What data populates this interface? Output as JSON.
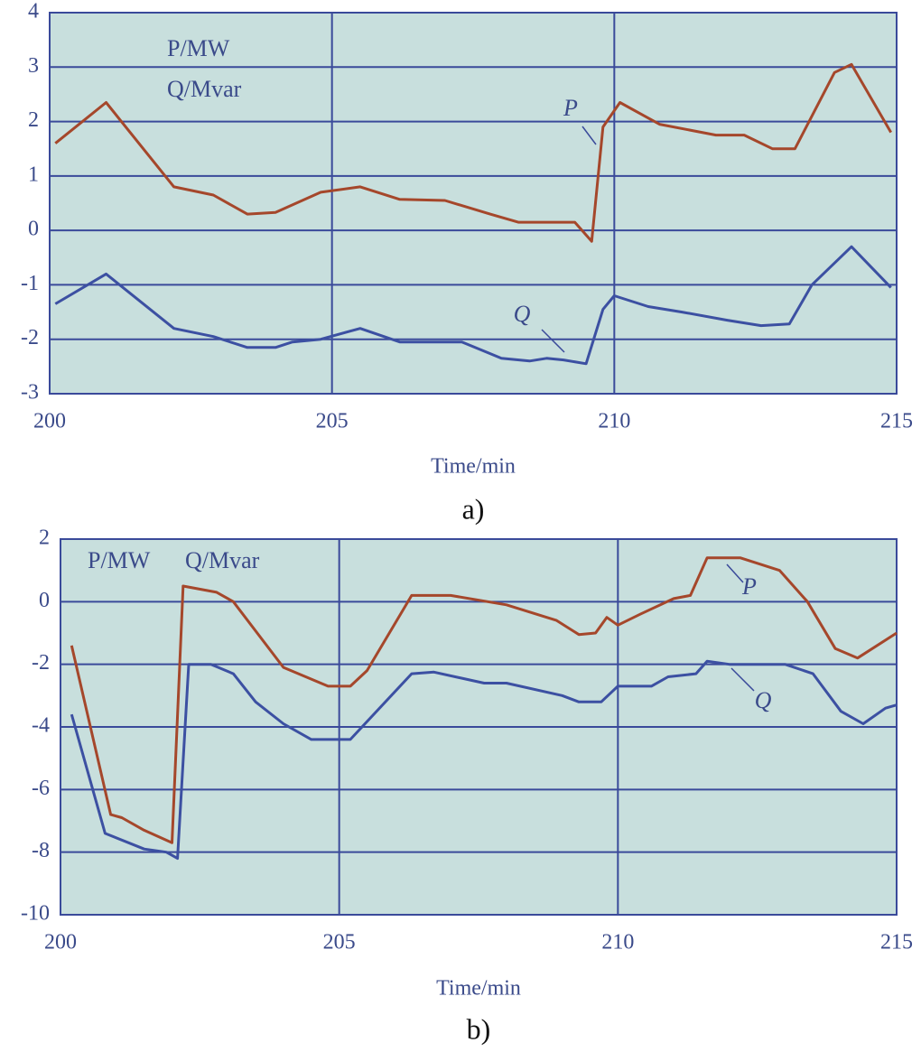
{
  "chart_data": [
    {
      "type": "line",
      "label": "a)",
      "x_label": "Time/min",
      "annotations": [
        "P/MW",
        "Q/Mvar"
      ],
      "xlim": [
        200,
        215
      ],
      "xticks": [
        200,
        205,
        210,
        215
      ],
      "ylim": [
        -3,
        4
      ],
      "yticks": [
        -3,
        -2,
        -1,
        0,
        1,
        2,
        3,
        4
      ],
      "grid": true,
      "background": "#c8dfdd",
      "grid_color": "#3a4a9a",
      "series": [
        {
          "name": "P",
          "color": "#a5472b",
          "x": [
            200.1,
            201.0,
            202.2,
            202.9,
            203.5,
            204.0,
            204.8,
            205.5,
            206.2,
            207.0,
            207.8,
            208.3,
            209.0,
            209.3,
            209.6,
            209.8,
            210.1,
            210.8,
            211.8,
            212.3,
            212.8,
            213.2,
            213.9,
            214.2,
            214.9
          ],
          "values": [
            1.6,
            2.35,
            0.8,
            0.65,
            0.3,
            0.33,
            0.7,
            0.8,
            0.57,
            0.55,
            0.3,
            0.15,
            0.15,
            0.15,
            -0.2,
            1.9,
            2.35,
            1.95,
            1.75,
            1.75,
            1.5,
            1.5,
            2.9,
            3.05,
            1.8
          ]
        },
        {
          "name": "Q",
          "color": "#3c50a2",
          "x": [
            200.1,
            201.0,
            202.2,
            202.9,
            203.5,
            204.0,
            204.3,
            204.8,
            205.5,
            206.2,
            207.3,
            208.0,
            208.5,
            208.8,
            209.1,
            209.5,
            209.8,
            210.0,
            210.6,
            211.2,
            212.0,
            212.6,
            213.1,
            213.5,
            214.2,
            214.9
          ],
          "values": [
            -1.35,
            -0.8,
            -1.8,
            -1.95,
            -2.15,
            -2.15,
            -2.05,
            -2.0,
            -1.8,
            -2.05,
            -2.05,
            -2.35,
            -2.4,
            -2.35,
            -2.38,
            -2.45,
            -1.45,
            -1.2,
            -1.4,
            -1.5,
            -1.65,
            -1.75,
            -1.72,
            -1.0,
            -0.3,
            -1.05
          ]
        }
      ]
    },
    {
      "type": "line",
      "label": "b)",
      "x_label": "Time/min",
      "annotations": [
        "P/MW",
        "Q/Mvar"
      ],
      "xlim": [
        200,
        215
      ],
      "xticks": [
        200,
        205,
        210,
        215
      ],
      "ylim": [
        -10,
        2
      ],
      "yticks": [
        -10,
        -8,
        -6,
        -4,
        -2,
        0,
        2
      ],
      "grid": true,
      "background": "#c8dfdd",
      "grid_color": "#3a4a9a",
      "series": [
        {
          "name": "P",
          "color": "#a5472b",
          "x": [
            200.2,
            200.9,
            201.1,
            201.5,
            202.0,
            202.2,
            202.8,
            203.1,
            204.0,
            204.8,
            205.2,
            205.5,
            206.3,
            207.0,
            208.0,
            208.9,
            209.3,
            209.6,
            209.8,
            210.0,
            210.4,
            211.0,
            211.3,
            211.6,
            212.2,
            212.9,
            213.4,
            213.9,
            214.3,
            215.0
          ],
          "values": [
            -1.4,
            -6.8,
            -6.9,
            -7.3,
            -7.7,
            0.5,
            0.3,
            0,
            -2.1,
            -2.7,
            -2.7,
            -2.2,
            0.2,
            0.2,
            -0.1,
            -0.6,
            -1.05,
            -1.0,
            -0.5,
            -0.75,
            -0.4,
            0.1,
            0.2,
            1.4,
            1.4,
            1.0,
            0,
            -1.5,
            -1.8,
            -1.0
          ]
        },
        {
          "name": "Q",
          "color": "#3c50a2",
          "x": [
            200.2,
            200.8,
            201.5,
            201.9,
            202.1,
            202.3,
            202.7,
            203.1,
            203.5,
            204.0,
            204.5,
            205.2,
            206.3,
            206.7,
            207.6,
            208.0,
            209.0,
            209.3,
            209.7,
            210.0,
            210.6,
            210.9,
            211.4,
            211.6,
            212.0,
            213.0,
            213.5,
            214.0,
            214.4,
            214.8,
            215.0
          ],
          "values": [
            -3.6,
            -7.4,
            -7.9,
            -8.0,
            -8.2,
            -2.0,
            -2.0,
            -2.3,
            -3.2,
            -3.9,
            -4.4,
            -4.4,
            -2.3,
            -2.25,
            -2.6,
            -2.6,
            -3.0,
            -3.2,
            -3.2,
            -2.7,
            -2.7,
            -2.4,
            -2.3,
            -1.9,
            -2.0,
            -2.0,
            -2.3,
            -3.5,
            -3.9,
            -3.4,
            -3.3
          ]
        }
      ]
    }
  ]
}
